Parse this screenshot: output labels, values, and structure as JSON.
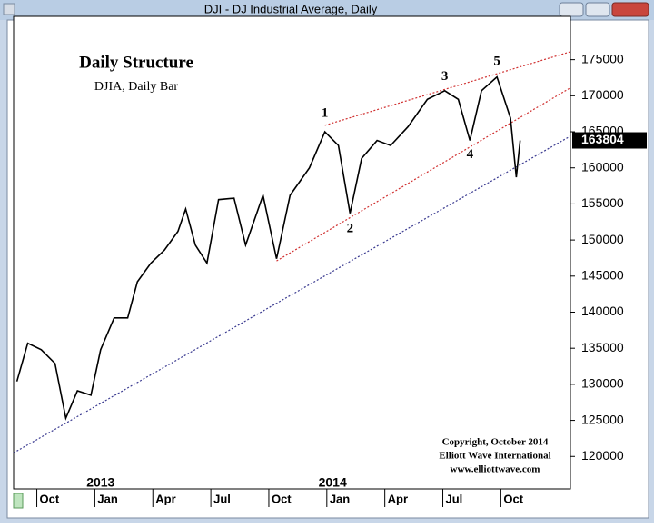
{
  "window_title": "DJI - DJ Industrial Average, Daily",
  "chart_data": {
    "type": "line",
    "title": "Daily Structure",
    "subtitle": "DJIA, Daily Bar",
    "copyright": [
      "Copyright, October 2014",
      "Elliott Wave International",
      "www.elliottwave.com"
    ],
    "color": "#000000",
    "x": [
      -1.03,
      -0.47,
      0.23,
      0.94,
      1.5,
      2.1,
      2.8,
      3.3,
      4.0,
      4.7,
      5.2,
      5.9,
      6.6,
      7.3,
      7.7,
      8.2,
      8.8,
      9.4,
      10.2,
      10.8,
      11.7,
      12.4,
      13.1,
      14.1,
      14.9,
      15.6,
      16.2,
      16.8,
      17.6,
      18.3,
      19.2,
      20.2,
      21.1,
      21.8,
      22.4,
      23.0,
      23.8,
      24.5,
      24.8,
      25.0
    ],
    "values": [
      130400,
      135700,
      134800,
      132900,
      125300,
      129100,
      128500,
      134800,
      139200,
      139200,
      144200,
      146800,
      148600,
      151200,
      154300,
      149300,
      146800,
      155600,
      155800,
      149300,
      156200,
      147400,
      156200,
      160000,
      165000,
      163100,
      153700,
      161300,
      163800,
      163100,
      165700,
      169500,
      170700,
      169500,
      163800,
      170700,
      172600,
      166900,
      158700,
      163800
    ],
    "last_price": 163804,
    "xlim": [
      -1.2,
      27.6
    ],
    "xticks": [
      {
        "value": 0,
        "label": "Oct"
      },
      {
        "value": 3,
        "label": "Jan"
      },
      {
        "value": 6,
        "label": "Apr"
      },
      {
        "value": 9,
        "label": "Jul"
      },
      {
        "value": 12,
        "label": "Oct"
      },
      {
        "value": 15,
        "label": "Jan"
      },
      {
        "value": 18,
        "label": "Apr"
      },
      {
        "value": 21,
        "label": "Jul"
      },
      {
        "value": 24,
        "label": "Oct"
      }
    ],
    "year_labels": [
      {
        "value": 3.3,
        "label": "2013"
      },
      {
        "value": 15.3,
        "label": "2014"
      }
    ],
    "ylim": [
      115500,
      181000
    ],
    "yticks": [
      120000,
      125000,
      130000,
      135000,
      140000,
      145000,
      150000,
      155000,
      160000,
      165000,
      170000,
      175000
    ],
    "trendlines": [
      {
        "color": "#d03030",
        "x": [
          14.9,
          27.6
        ],
        "y": [
          165900,
          176100
        ]
      },
      {
        "color": "#d03030",
        "x": [
          12.4,
          27.6
        ],
        "y": [
          147100,
          171100
        ]
      },
      {
        "color": "#3a3a90",
        "x": [
          -1.2,
          27.6
        ],
        "y": [
          120500,
          164400
        ]
      }
    ],
    "annotations": [
      {
        "text": "1",
        "x": 14.9,
        "y": 167500
      },
      {
        "text": "2",
        "x": 16.2,
        "y": 151500
      },
      {
        "text": "3",
        "x": 21.1,
        "y": 172600
      },
      {
        "text": "4",
        "x": 22.4,
        "y": 161800
      },
      {
        "text": "5",
        "x": 23.8,
        "y": 174700
      }
    ]
  }
}
